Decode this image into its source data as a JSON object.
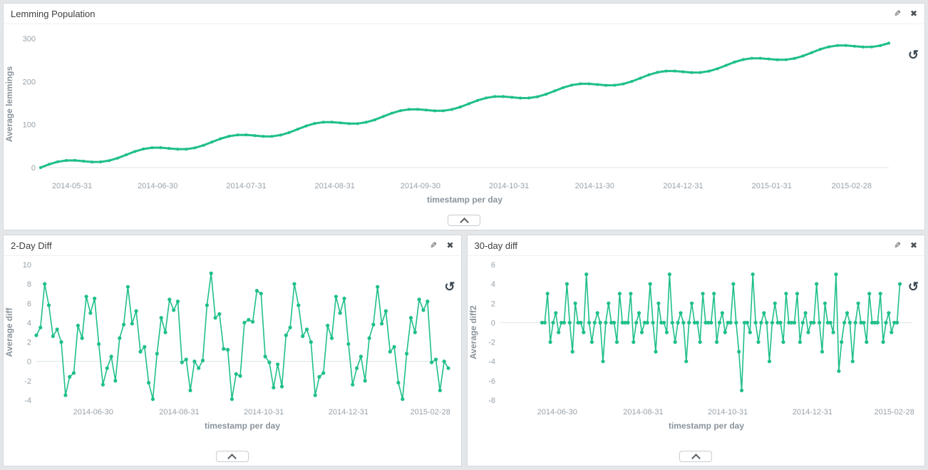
{
  "icons": {
    "edit": "✎",
    "close": "✖",
    "reset": "↺"
  },
  "colors": {
    "series": "#1fbf8b",
    "zero_line": "#dde4e8",
    "panel_bg": "#ffffff",
    "page_bg": "#e3e7ea"
  },
  "panels": [
    {
      "title": "Lemming Population"
    },
    {
      "title": "2-Day Diff"
    },
    {
      "title": "30-day diff"
    }
  ],
  "chart_data": [
    {
      "type": "line",
      "title": "Lemming Population",
      "xlabel": "timestamp per day",
      "ylabel": "Average lemmings",
      "legend": "none",
      "grid": "zero-line-only",
      "x_domain_days": [
        0,
        297
      ],
      "ylim": [
        -15,
        310
      ],
      "yticks": [
        0,
        100,
        200,
        300
      ],
      "xticks": [
        {
          "day": 11,
          "label": "2014-05-31"
        },
        {
          "day": 41,
          "label": "2014-06-30"
        },
        {
          "day": 72,
          "label": "2014-07-31"
        },
        {
          "day": 103,
          "label": "2014-08-31"
        },
        {
          "day": 133,
          "label": "2014-09-30"
        },
        {
          "day": 164,
          "label": "2014-10-31"
        },
        {
          "day": 194,
          "label": "2014-11-30"
        },
        {
          "day": 225,
          "label": "2014-12-31"
        },
        {
          "day": 256,
          "label": "2015-01-31"
        },
        {
          "day": 284,
          "label": "2015-02-28"
        }
      ],
      "style": {
        "stroke_width": 3,
        "marker_radius": 2.1
      },
      "series": [
        {
          "name": "Average lemmings",
          "color": "#1fbf8b",
          "start_day": 0,
          "step_days": 3,
          "values": [
            0.0,
            7.7,
            13.5,
            16.5,
            16.6,
            14.9,
            13.1,
            13.2,
            16.2,
            22.0,
            29.7,
            37.4,
            43.2,
            46.2,
            46.3,
            44.6,
            42.8,
            42.9,
            45.9,
            51.7,
            59.4,
            67.1,
            72.9,
            75.9,
            76.0,
            74.3,
            72.5,
            72.6,
            75.6,
            81.4,
            89.1,
            96.8,
            102.6,
            105.6,
            105.7,
            104.0,
            102.2,
            102.3,
            105.3,
            111.1,
            118.8,
            126.5,
            132.3,
            135.3,
            135.4,
            133.7,
            131.9,
            132.0,
            135.0,
            140.8,
            148.5,
            156.2,
            162.0,
            165.0,
            165.1,
            163.4,
            161.6,
            161.7,
            164.7,
            170.5,
            178.2,
            185.9,
            191.7,
            194.7,
            194.8,
            193.1,
            191.3,
            191.4,
            194.4,
            200.2,
            207.9,
            215.6,
            221.4,
            224.4,
            224.5,
            222.8,
            221.0,
            221.1,
            224.1,
            229.9,
            237.6,
            245.3,
            251.1,
            254.1,
            254.2,
            252.5,
            250.7,
            250.8,
            253.8,
            259.6,
            267.3,
            275.0,
            280.8,
            283.8,
            283.9,
            282.2,
            280.4,
            280.5,
            283.5,
            289.3
          ]
        }
      ]
    },
    {
      "type": "line",
      "title": "2-Day Diff",
      "xlabel": "timestamp per day",
      "ylabel": "Average diff",
      "legend": "none",
      "grid": "zero-line-only",
      "x_domain_days": [
        0,
        297
      ],
      "ylim": [
        -4,
        10
      ],
      "yticks": [
        -4,
        -2,
        0,
        2,
        4,
        6,
        8,
        10
      ],
      "xticks": [
        {
          "day": 41,
          "label": "2014-06-30"
        },
        {
          "day": 103,
          "label": "2014-08-31"
        },
        {
          "day": 164,
          "label": "2014-10-31"
        },
        {
          "day": 225,
          "label": "2014-12-31"
        },
        {
          "day": 284,
          "label": "2015-02-28"
        }
      ],
      "style": {
        "stroke_width": 1.6,
        "marker_radius": 2.6
      },
      "series": [
        {
          "name": "Average diff",
          "color": "#1fbf8b",
          "start_day": 0,
          "step_days": 3,
          "values": [
            2.7,
            3.5,
            8.0,
            5.8,
            2.6,
            3.3,
            2.0,
            -3.5,
            -1.6,
            -1.2,
            3.7,
            2.4,
            6.7,
            5.0,
            6.5,
            1.8,
            -2.4,
            -0.7,
            0.5,
            -2.0,
            2.4,
            3.8,
            7.7,
            3.9,
            5.2,
            1.0,
            1.5,
            -2.2,
            -3.9,
            0.8,
            4.5,
            3.0,
            6.4,
            5.3,
            6.2,
            -0.1,
            0.2,
            -3.0,
            0.0,
            -0.7,
            0.1,
            5.8,
            9.1,
            4.5,
            4.9,
            1.3,
            1.2,
            -3.9,
            -1.3,
            -1.5,
            4.0,
            4.3,
            4.1,
            7.3,
            7.0,
            0.5,
            -0.1,
            -2.7,
            -0.3,
            -2.6,
            2.7,
            3.5,
            8.0,
            5.8,
            2.6,
            3.3,
            2.0,
            -3.5,
            -1.6,
            -1.2,
            3.7,
            2.4,
            6.7,
            5.0,
            6.5,
            1.8,
            -2.4,
            -0.7,
            0.5,
            -2.0,
            2.4,
            3.8,
            7.7,
            3.9,
            5.2,
            1.0,
            1.5,
            -2.2,
            -3.9,
            0.8,
            4.5,
            3.0,
            6.4,
            5.3,
            6.2,
            -0.1,
            0.2,
            -3.0,
            0.0,
            -0.7
          ]
        }
      ]
    },
    {
      "type": "line",
      "title": "30-day diff",
      "xlabel": "timestamp per day",
      "ylabel": "Average diff2",
      "legend": "none",
      "grid": "zero-line-only",
      "x_domain_days": [
        0,
        297
      ],
      "ylim": [
        -8,
        6
      ],
      "yticks": [
        -8,
        -6,
        -4,
        -2,
        0,
        2,
        4,
        6
      ],
      "xticks": [
        {
          "day": 41,
          "label": "2014-06-30"
        },
        {
          "day": 103,
          "label": "2014-08-31"
        },
        {
          "day": 164,
          "label": "2014-10-31"
        },
        {
          "day": 225,
          "label": "2014-12-31"
        },
        {
          "day": 284,
          "label": "2015-02-28"
        }
      ],
      "style": {
        "stroke_width": 1.6,
        "marker_radius": 2.6
      },
      "series": [
        {
          "name": "Average diff2",
          "color": "#1fbf8b",
          "start_day": 30,
          "step_days": 2,
          "values": [
            0,
            0,
            3,
            -2,
            0,
            1,
            -1,
            0,
            0,
            4,
            0,
            -3,
            2,
            0,
            0,
            -1,
            5,
            0,
            -2,
            0,
            1,
            0,
            -4,
            0,
            2,
            0,
            0,
            -2,
            3,
            0,
            0,
            0,
            3,
            -2,
            0,
            1,
            -1,
            0,
            0,
            4,
            0,
            -3,
            2,
            0,
            0,
            -1,
            5,
            0,
            -2,
            0,
            1,
            0,
            -4,
            0,
            2,
            0,
            0,
            -2,
            3,
            0,
            0,
            0,
            3,
            -2,
            0,
            1,
            -1,
            0,
            0,
            4,
            0,
            -3,
            -7,
            0,
            0,
            -1,
            5,
            0,
            -2,
            0,
            1,
            0,
            -4,
            0,
            2,
            0,
            0,
            -2,
            3,
            0,
            0,
            0,
            3,
            -2,
            0,
            1,
            -1,
            0,
            0,
            4,
            0,
            -3,
            2,
            0,
            0,
            -1,
            5,
            -5,
            -2,
            0,
            1,
            0,
            -4,
            0,
            2,
            0,
            0,
            -2,
            3,
            0,
            0,
            0,
            3,
            -2,
            0,
            1,
            -1,
            0,
            0,
            4
          ]
        }
      ]
    }
  ]
}
